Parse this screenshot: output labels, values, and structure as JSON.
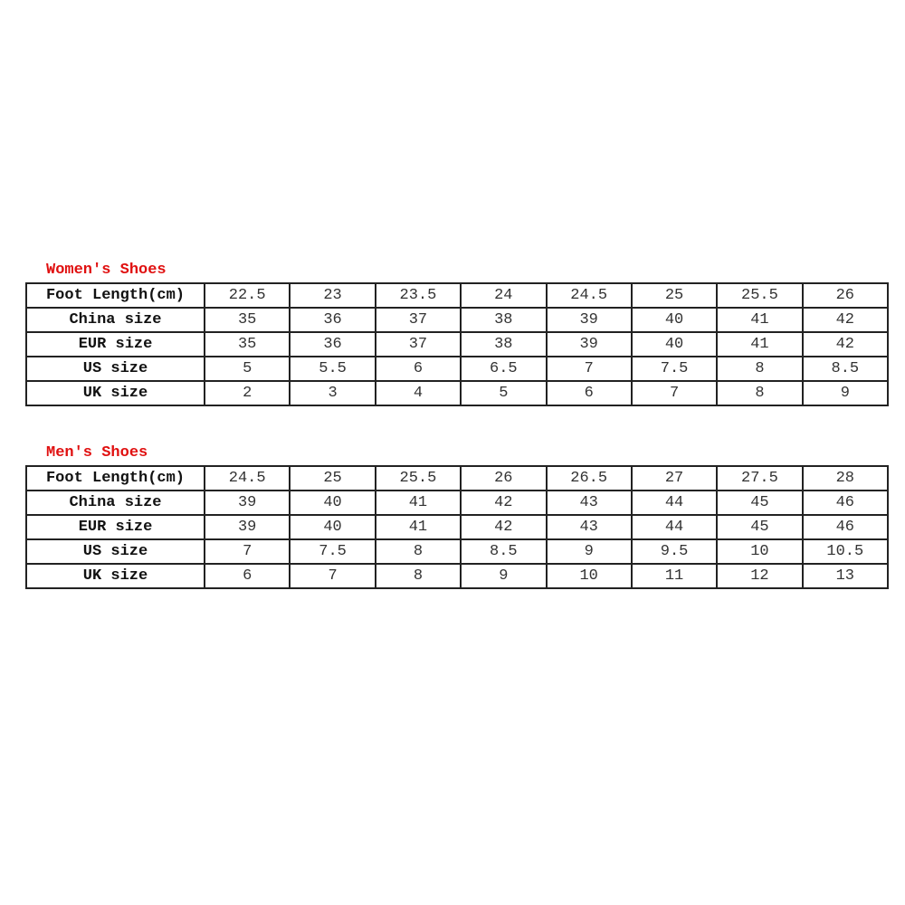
{
  "tables": [
    {
      "title": "Women's Shoes",
      "rows": [
        {
          "label": "Foot Length(cm)",
          "values": [
            "22.5",
            "23",
            "23.5",
            "24",
            "24.5",
            "25",
            "25.5",
            "26"
          ]
        },
        {
          "label": "China size",
          "values": [
            "35",
            "36",
            "37",
            "38",
            "39",
            "40",
            "41",
            "42"
          ]
        },
        {
          "label": "EUR size",
          "values": [
            "35",
            "36",
            "37",
            "38",
            "39",
            "40",
            "41",
            "42"
          ]
        },
        {
          "label": "US size",
          "values": [
            "5",
            "5.5",
            "6",
            "6.5",
            "7",
            "7.5",
            "8",
            "8.5"
          ]
        },
        {
          "label": "UK size",
          "values": [
            "2",
            "3",
            "4",
            "5",
            "6",
            "7",
            "8",
            "9"
          ]
        }
      ]
    },
    {
      "title": "Men's Shoes",
      "rows": [
        {
          "label": "Foot Length(cm)",
          "values": [
            "24.5",
            "25",
            "25.5",
            "26",
            "26.5",
            "27",
            "27.5",
            "28"
          ]
        },
        {
          "label": "China size",
          "values": [
            "39",
            "40",
            "41",
            "42",
            "43",
            "44",
            "45",
            "46"
          ]
        },
        {
          "label": "EUR size",
          "values": [
            "39",
            "40",
            "41",
            "42",
            "43",
            "44",
            "45",
            "46"
          ]
        },
        {
          "label": "US size",
          "values": [
            "7",
            "7.5",
            "8",
            "8.5",
            "9",
            "9.5",
            "10",
            "10.5"
          ]
        },
        {
          "label": "UK size",
          "values": [
            "6",
            "7",
            "8",
            "9",
            "10",
            "11",
            "12",
            "13"
          ]
        }
      ]
    }
  ],
  "colors": {
    "title": "#e01010",
    "border": "#222222"
  }
}
